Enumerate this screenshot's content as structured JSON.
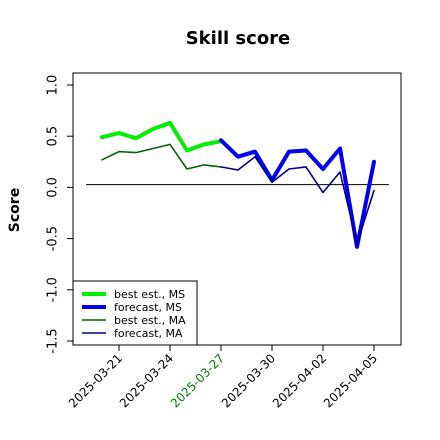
{
  "chart_data": {
    "type": "line",
    "title": "Skill score",
    "xlabel": "",
    "ylabel": "Score",
    "ylim": [
      -1.5,
      1.0
    ],
    "yticks": [
      "-1.5",
      "-1.0",
      "-0.5",
      "0.0",
      "0.5",
      "1.0"
    ],
    "xticks": [
      {
        "label": "2025-03-21",
        "color": "#000000"
      },
      {
        "label": "2025-03-24",
        "color": "#000000"
      },
      {
        "label": "2025-03-27",
        "color": "#008000"
      },
      {
        "label": "2025-03-30",
        "color": "#000000"
      },
      {
        "label": "2025-04-02",
        "color": "#000000"
      },
      {
        "label": "2025-04-05",
        "color": "#000000"
      }
    ],
    "reference_line": 0.0,
    "legend_position": "bottom-left",
    "series": [
      {
        "name": "best est., MS",
        "color": "#00ee00",
        "width": 4,
        "x": [
          "2025-03-20",
          "2025-03-21",
          "2025-03-22",
          "2025-03-23",
          "2025-03-24",
          "2025-03-25",
          "2025-03-26",
          "2025-03-27"
        ],
        "y": [
          0.49,
          0.53,
          0.48,
          0.57,
          0.63,
          0.36,
          0.42,
          0.45
        ]
      },
      {
        "name": "forecast, MS",
        "color": "#0000ee",
        "width": 4,
        "x": [
          "2025-03-27",
          "2025-03-28",
          "2025-03-29",
          "2025-03-30",
          "2025-03-31",
          "2025-04-01",
          "2025-04-02",
          "2025-04-03",
          "2025-04-04",
          "2025-04-05"
        ],
        "y": [
          0.46,
          0.3,
          0.35,
          0.07,
          0.35,
          0.36,
          0.18,
          0.38,
          -0.58,
          0.25
        ]
      },
      {
        "name": "best est., MA",
        "color": "#006400",
        "width": 1.6,
        "x": [
          "2025-03-20",
          "2025-03-21",
          "2025-03-22",
          "2025-03-23",
          "2025-03-24",
          "2025-03-25",
          "2025-03-26",
          "2025-03-27"
        ],
        "y": [
          0.27,
          0.35,
          0.34,
          0.38,
          0.42,
          0.18,
          0.22,
          0.2
        ]
      },
      {
        "name": "forecast, MA",
        "color": "#00008b",
        "width": 1.6,
        "x": [
          "2025-03-27",
          "2025-03-28",
          "2025-03-29",
          "2025-03-30",
          "2025-03-31",
          "2025-04-01",
          "2025-04-02",
          "2025-04-03",
          "2025-04-04",
          "2025-04-05"
        ],
        "y": [
          0.2,
          0.17,
          0.3,
          0.05,
          0.18,
          0.2,
          -0.05,
          0.15,
          -0.55,
          -0.03
        ]
      }
    ]
  }
}
